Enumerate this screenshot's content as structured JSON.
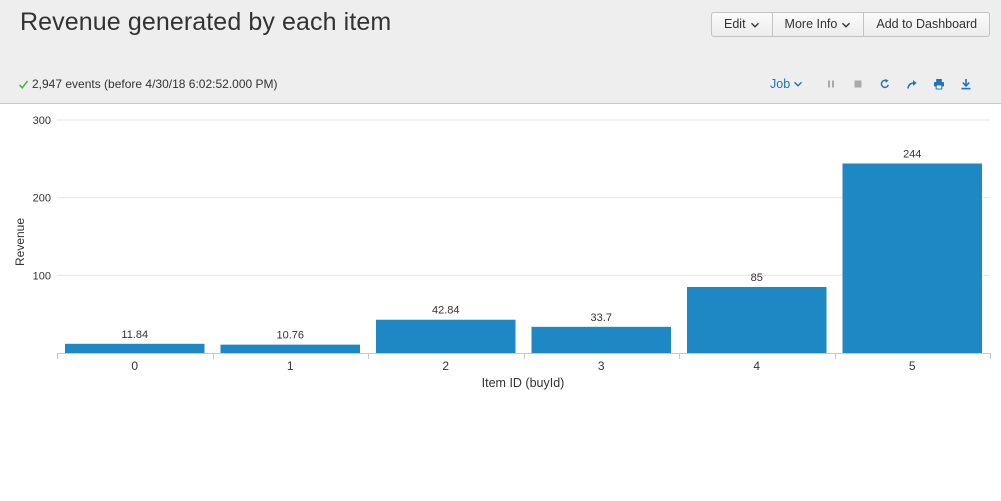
{
  "header": {
    "title": "Revenue generated by each item",
    "buttons": {
      "edit": "Edit",
      "more_info": "More Info",
      "add_to_dashboard": "Add to Dashboard"
    }
  },
  "status": {
    "events_text": "2,947 events (before 4/30/18 6:02:52.000 PM)"
  },
  "job": {
    "label": "Job"
  },
  "icons": {
    "status": "check-icon",
    "tools": [
      "pause-icon",
      "stop-icon",
      "refresh-icon",
      "share-icon",
      "print-icon",
      "download-icon"
    ]
  },
  "colors": {
    "accent": "#1e73be",
    "bar": "#1e88c4",
    "success": "#5cb33a",
    "disabled": "#a9a9a9"
  },
  "chart_data": {
    "type": "bar",
    "categories": [
      "0",
      "1",
      "2",
      "3",
      "4",
      "5"
    ],
    "values": [
      11.84,
      10.76,
      42.84,
      33.7,
      85,
      244
    ],
    "value_labels": [
      "11.84",
      "10.76",
      "42.84",
      "33.7",
      "85",
      "244"
    ],
    "xlabel": "Item ID (buyId)",
    "ylabel": "Revenue",
    "ylim": [
      0,
      300
    ],
    "yticks": [
      100,
      200,
      300
    ],
    "grid": true,
    "legend": "none"
  }
}
